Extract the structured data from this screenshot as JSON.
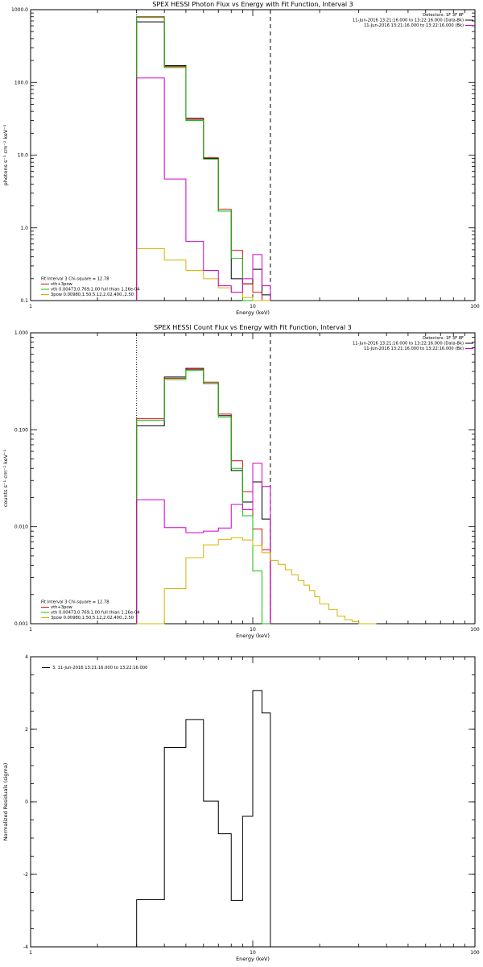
{
  "colors": {
    "data": "#000000",
    "total": "#d01010",
    "vth": "#10c010",
    "pow": "#d8b400",
    "bk": "#d000d0"
  },
  "chart_data": [
    {
      "type": "line",
      "title": "SPEX HESSI Photon Flux vs Energy with Fit Function, Interval 3",
      "xlabel": "Energy (keV)",
      "ylabel": "photons s⁻¹ cm⁻² keV⁻¹",
      "xscale": "log",
      "yscale": "log",
      "xlim": [
        1,
        100
      ],
      "ylim": [
        0.1,
        1000
      ],
      "xticks": [
        "1",
        "10",
        "100"
      ],
      "yticks": [
        "0.1",
        "1.0",
        "10.0",
        "100.0",
        "1000.0"
      ],
      "vlines": [
        {
          "x": 3,
          "style": "dotted"
        },
        {
          "x": 12,
          "style": "dashed"
        }
      ],
      "info_top_right": [
        "Detectors: 1F 3F 8F",
        "11-Jun-2016 13:21:16.000 to 13:22:16.000 (Data-Bk)",
        "11-Jun-2016 13:21:16.000 to 13:22:16.000 (Bk)"
      ],
      "legend_bottom_left": [
        "Fit Interval 3   Chi-square = 12.78",
        "vth+3pow",
        "vth 0.00473,0.769,1.00  full thian 1.26e-04",
        "3pow 0.00980,1.50,5.12,2.02,400.,2.50"
      ],
      "edges": [
        3,
        4,
        5,
        6,
        7,
        8,
        9,
        10,
        11,
        12
      ],
      "series": [
        {
          "name": "11-Jun-2016 13:21:16.000 to 13:22:16.000 (Data-Bk)",
          "color_key": "data",
          "values": [
            680,
            170,
            32,
            9,
            1.7,
            0.2,
            0.17,
            0.27,
            0.12
          ]
        },
        {
          "name": "vth+3pow",
          "color_key": "total",
          "values": [
            800,
            165,
            31,
            9.2,
            1.8,
            0.49,
            0.17,
            0.13,
            0.1
          ]
        },
        {
          "name": "vth 0.00473,0.769,1.00  full thian 1.26e-04",
          "color_key": "vth",
          "values": [
            780,
            160,
            30,
            8.8,
            1.7,
            0.38,
            0.1,
            0.1,
            0.1
          ]
        },
        {
          "name": "3pow 0.00980,1.50,5.12,2.02,400.,2.50",
          "color_key": "pow",
          "values": [
            0.52,
            0.36,
            0.26,
            0.2,
            0.15,
            0.13,
            0.11,
            0.1,
            0.1
          ]
        },
        {
          "name": "11-Jun-2016 13:21:16.000 to 13:22:16.000 (Bk)",
          "color_key": "bk",
          "values": [
            115,
            4.7,
            0.65,
            0.26,
            0.16,
            0.13,
            0.2,
            0.43,
            0.16
          ]
        }
      ]
    },
    {
      "type": "line",
      "title": "SPEX HESSI Count Flux vs Energy with Fit Function, Interval 3",
      "xlabel": "Energy (keV)",
      "ylabel": "counts s⁻¹ cm⁻² keV⁻¹",
      "xscale": "log",
      "yscale": "log",
      "xlim": [
        1,
        100
      ],
      "ylim": [
        0.001,
        1
      ],
      "xticks": [
        "1",
        "10",
        "100"
      ],
      "yticks": [
        "0.001",
        "0.010",
        "0.100",
        "1.000"
      ],
      "vlines": [
        {
          "x": 3,
          "style": "dotted"
        },
        {
          "x": 12,
          "style": "dashed"
        }
      ],
      "info_top_right": [
        "Detectors: 1F 3F 8F",
        "11-Jun-2016 13:21:16.000 to 13:22:16.000 (Data-Bk)",
        "11-Jun-2016 13:21:16.000 to 13:22:16.000 (Bk)"
      ],
      "legend_bottom_left": [
        "Fit Interval 3   Chi-square = 12.78",
        "vth+3pow",
        "vth 0.00473,0.769,1.00  full thian 1.26e-04",
        "3pow 0.00980,1.50,5.12,2.02,400.,2.50"
      ],
      "edges": [
        3,
        4,
        5,
        6,
        7,
        8,
        9,
        10,
        11,
        12
      ],
      "series": [
        {
          "name": "11-Jun-2016 13:21:16.000 to 13:22:16.000 (Data-Bk)",
          "color_key": "data",
          "values": [
            0.11,
            0.35,
            0.43,
            0.3,
            0.14,
            0.038,
            0.018,
            0.029,
            0.012
          ]
        },
        {
          "name": "vth+3pow",
          "color_key": "total",
          "values": [
            0.13,
            0.34,
            0.42,
            0.31,
            0.145,
            0.048,
            0.023,
            0.0095,
            0.0058
          ]
        },
        {
          "name": "vth 0.00473,0.769,1.00  full thian 1.26e-04",
          "color_key": "vth",
          "values": [
            0.125,
            0.33,
            0.41,
            0.3,
            0.135,
            0.04,
            0.013,
            0.0035,
            0.001
          ]
        },
        {
          "name": "11-Jun-2016 13:21:16.000 to 13:22:16.000 (Bk)",
          "color_key": "bk",
          "values": [
            0.019,
            0.0098,
            0.0087,
            0.009,
            0.0097,
            0.017,
            0.015,
            0.045,
            0.026
          ]
        },
        {
          "name": "3pow 0.00980,1.50,5.12,2.02,400.,2.50",
          "color_key": "pow",
          "edges": [
            3,
            4,
            5,
            6,
            7,
            8,
            9,
            10,
            11,
            12,
            13,
            14,
            15,
            16,
            17,
            18,
            19,
            20,
            22,
            24,
            26,
            28,
            30,
            33,
            36
          ],
          "values": [
            0.001,
            0.0023,
            0.0048,
            0.0065,
            0.0074,
            0.0077,
            0.0073,
            0.0064,
            0.0054,
            0.0045,
            0.0041,
            0.0036,
            0.0032,
            0.0028,
            0.0025,
            0.0022,
            0.0019,
            0.0016,
            0.0014,
            0.0012,
            0.0011,
            0.00105,
            0.001,
            0.001
          ]
        }
      ]
    },
    {
      "type": "line",
      "title": "",
      "xlabel": "Energy (keV)",
      "ylabel": "Normalized Residuals (sigma)",
      "xscale": "log",
      "yscale": "linear",
      "xlim": [
        1,
        100
      ],
      "ylim": [
        -4,
        4
      ],
      "xticks": [
        "1",
        "10",
        "100"
      ],
      "yticks": [
        "-4",
        "-2",
        "0",
        "2",
        "4"
      ],
      "legend_top_left": [
        "3, 11-Jun-2016 13:21:16.000 to 13:22:16.000"
      ],
      "edges": [
        3,
        4,
        5,
        6,
        7,
        8,
        9,
        10,
        11,
        12
      ],
      "series": [
        {
          "name": "3, 11-Jun-2016 13:21:16.000 to 13:22:16.000",
          "color_key": "data",
          "values": [
            -2.7,
            1.5,
            2.27,
            0.02,
            -0.88,
            -2.72,
            -0.4,
            3.07,
            2.45
          ]
        }
      ]
    }
  ]
}
